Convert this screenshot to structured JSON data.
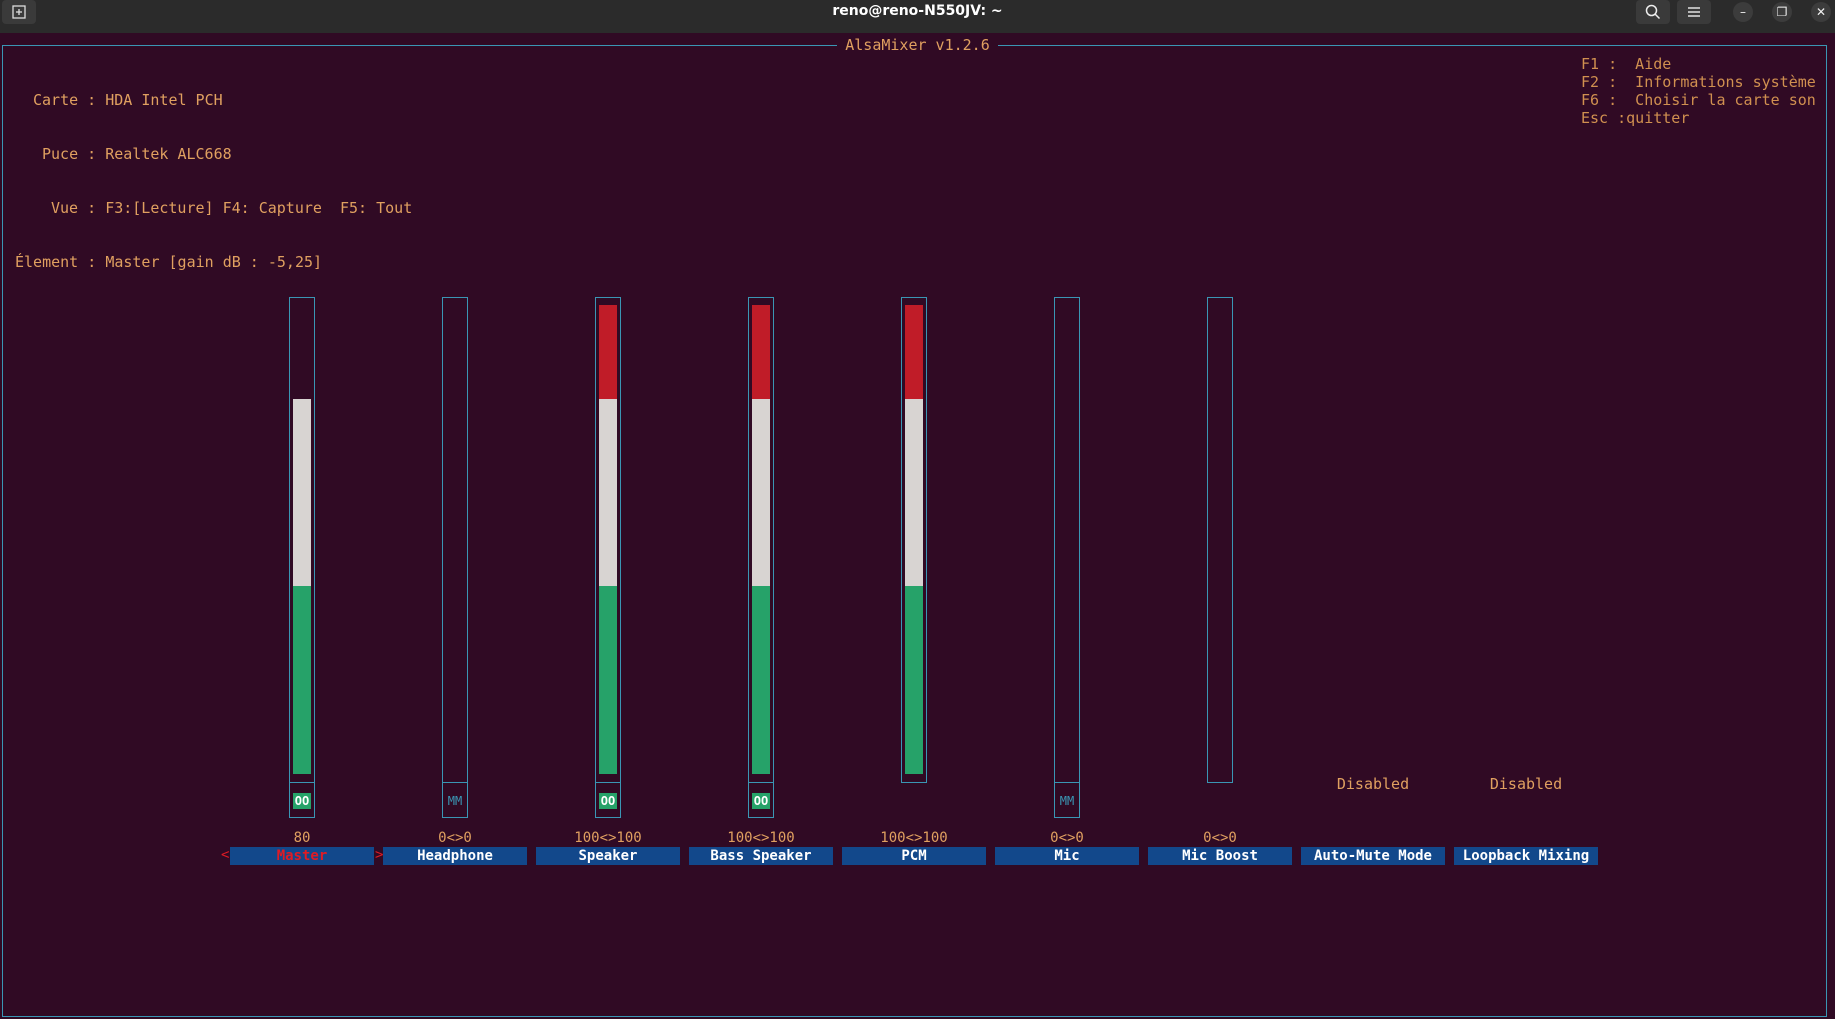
{
  "window": {
    "title": "reno@reno-N550JV: ~",
    "buttons": {
      "new_tab_icon": "new-tab-icon",
      "search_icon": "search-icon",
      "menu_icon": "hamburger-menu-icon",
      "minimize": "–",
      "maximize": "❐",
      "close": "✕"
    }
  },
  "app": {
    "title": "AlsaMixer v1.2.6"
  },
  "info": {
    "card_label": "Carte :",
    "card_value": "HDA Intel PCH",
    "chip_label": "Puce :",
    "chip_value": "Realtek ALC668",
    "view_label": "Vue :",
    "view_value": "F3:[Lecture] F4: Capture  F5: Tout",
    "element_label": "Élement :",
    "element_value": "Master [gain dB : -5,25]"
  },
  "keys": [
    {
      "key": "F1 :",
      "desc": " Aide"
    },
    {
      "key": "F2 :",
      "desc": " Informations système"
    },
    {
      "key": "F6 :",
      "desc": " Choisir la carte son"
    },
    {
      "key": "Esc :",
      "desc": "quitter"
    }
  ],
  "channels": [
    {
      "name": "Master",
      "value": "80",
      "level": 0.8,
      "mute": "OO",
      "mute_on": true,
      "selected": true,
      "has_mute": true
    },
    {
      "name": "Headphone",
      "value": "0<>0",
      "level": 0,
      "mute": "MM",
      "mute_on": false,
      "selected": false,
      "has_mute": true
    },
    {
      "name": "Speaker",
      "value": "100<>100",
      "level": 1.0,
      "mute": "OO",
      "mute_on": true,
      "selected": false,
      "has_mute": true
    },
    {
      "name": "Bass Speaker",
      "value": "100<>100",
      "level": 1.0,
      "mute": "OO",
      "mute_on": true,
      "selected": false,
      "has_mute": true
    },
    {
      "name": "PCM",
      "value": "100<>100",
      "level": 1.0,
      "mute": "",
      "mute_on": false,
      "selected": false,
      "has_mute": false
    },
    {
      "name": "Mic",
      "value": "0<>0",
      "level": 0,
      "mute": "MM",
      "mute_on": false,
      "selected": false,
      "has_mute": true
    },
    {
      "name": "Mic Boost",
      "value": "0<>0",
      "level": 0,
      "mute": "",
      "mute_on": false,
      "selected": false,
      "has_mute": false
    },
    {
      "name": "Auto-Mute Mode",
      "status": "Disabled",
      "enum": true
    },
    {
      "name": "Loopback Mixing",
      "status": "Disabled",
      "enum": true
    }
  ],
  "colors": {
    "green": "#26a269",
    "white": "#d8d4d2",
    "red": "#c01c28",
    "frame": "#3a96b4",
    "label_bg": "#12488b"
  },
  "selector_arrows": {
    "left": "<",
    "right": ">"
  }
}
